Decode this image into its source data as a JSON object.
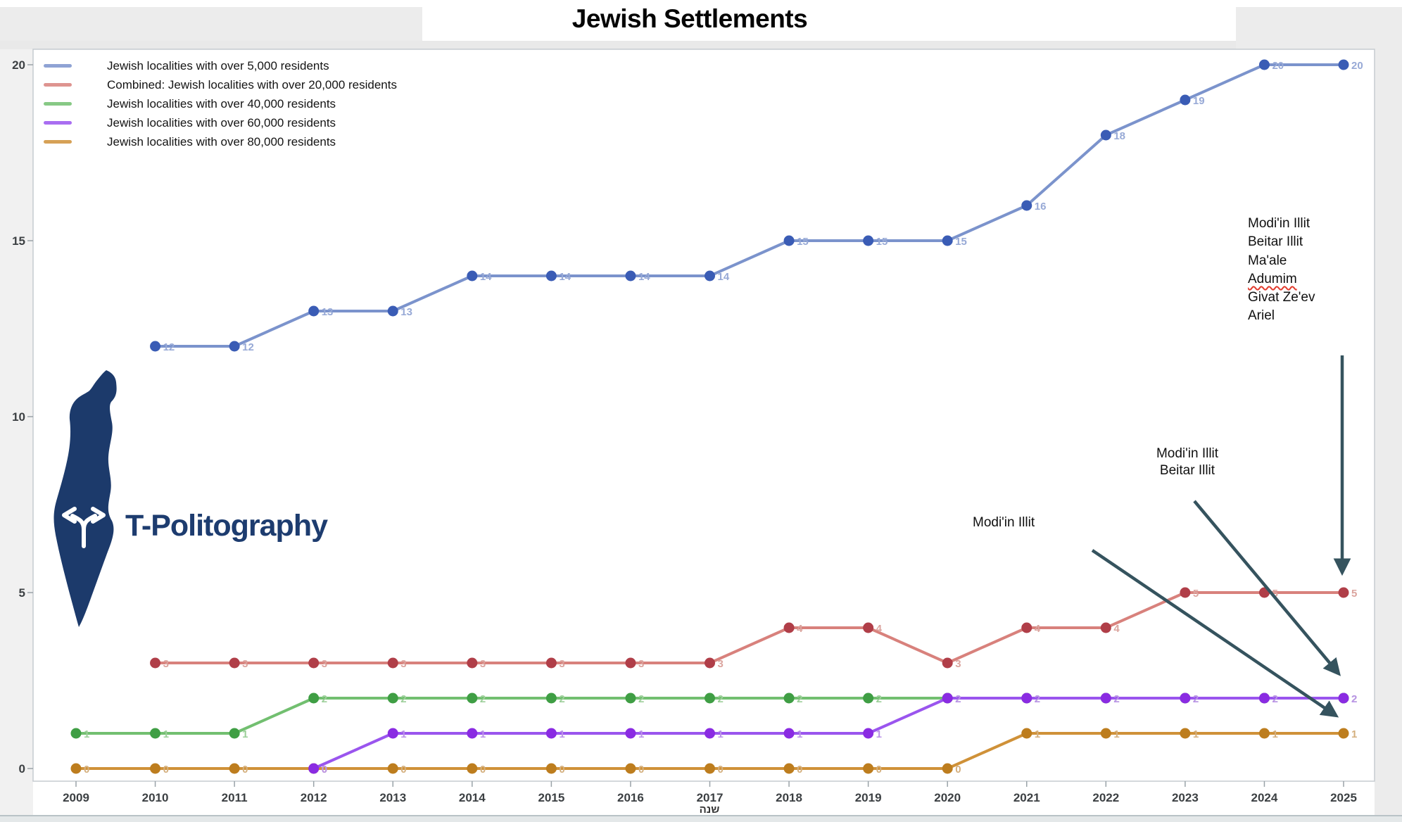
{
  "header": {
    "title": "Jewish Settlements"
  },
  "axes": {
    "x_label": "שנה"
  },
  "logo": {
    "text": "T-Politography",
    "color": "#1d3c6f"
  },
  "legend": {
    "items": [
      {
        "label": "Jewish localities with over 5,000 residents",
        "color": "#7b93cc"
      },
      {
        "label": "Combined: Jewish localities with over 20,000 residents",
        "color": "#d8817c"
      },
      {
        "label": "Jewish localities with over 40,000 residents",
        "color": "#72bf70"
      },
      {
        "label": "Jewish localities with over 60,000 residents",
        "color": "#9a55ee"
      },
      {
        "label": "Jewish localities with over 80,000 residents",
        "color": "#cf9138"
      }
    ]
  },
  "chart_data": {
    "type": "line",
    "title": "Jewish Settlements",
    "xlabel": "שנה",
    "ylabel": "",
    "ylim": [
      0,
      20
    ],
    "xlim": [
      2009,
      2025
    ],
    "grid": false,
    "legend_position": "top-left",
    "x_ticks": [
      "2009",
      "2010",
      "2011",
      "2012",
      "2013",
      "2014",
      "2015",
      "2016",
      "2017",
      "2018",
      "2019",
      "2020",
      "2021",
      "2022",
      "2023",
      "2024",
      "2025"
    ],
    "y_ticks": [
      0,
      5,
      10,
      15,
      20
    ],
    "series": [
      {
        "key": "over5000",
        "name": "Jewish localities with over 5,000 residents",
        "line_color": "#7b93cc",
        "point_color": "#3a5cb5",
        "label_color": "#97a9d6",
        "years": [
          2010,
          2011,
          2012,
          2013,
          2014,
          2015,
          2016,
          2017,
          2018,
          2019,
          2020,
          2021,
          2022,
          2023,
          2024,
          2025
        ],
        "values": [
          12,
          12,
          13,
          13,
          14,
          14,
          14,
          14,
          15,
          15,
          15,
          16,
          18,
          19,
          20,
          20
        ]
      },
      {
        "key": "over20000",
        "name": "Combined: Jewish localities with over 20,000 residents",
        "line_color": "#d8817c",
        "point_color": "#b03e48",
        "label_color": "#dba49e",
        "years": [
          2010,
          2011,
          2012,
          2013,
          2014,
          2015,
          2016,
          2017,
          2018,
          2019,
          2020,
          2021,
          2022,
          2023,
          2024,
          2025
        ],
        "values": [
          3,
          3,
          3,
          3,
          3,
          3,
          3,
          3,
          4,
          4,
          3,
          4,
          4,
          5,
          5,
          5
        ]
      },
      {
        "key": "over40000",
        "name": "Jewish localities with over 40,000 residents",
        "line_color": "#72bf70",
        "point_color": "#3f9e44",
        "label_color": "#9ccf99",
        "years": [
          2009,
          2010,
          2011,
          2012,
          2013,
          2014,
          2015,
          2016,
          2017,
          2018,
          2019,
          2020,
          2021,
          2022,
          2023,
          2024,
          2025
        ],
        "values": [
          1,
          1,
          1,
          2,
          2,
          2,
          2,
          2,
          2,
          2,
          2,
          2,
          2,
          2,
          2,
          2,
          2
        ]
      },
      {
        "key": "over60000",
        "name": "Jewish localities with over 60,000 residents",
        "line_color": "#9a55ee",
        "point_color": "#8a2be2",
        "label_color": "#bb93e8",
        "years": [
          2012,
          2013,
          2014,
          2015,
          2016,
          2017,
          2018,
          2019,
          2020,
          2021,
          2022,
          2023,
          2024,
          2025
        ],
        "values": [
          0,
          1,
          1,
          1,
          1,
          1,
          1,
          1,
          2,
          2,
          2,
          2,
          2,
          2
        ]
      },
      {
        "key": "over80000",
        "name": "Jewish localities with over 80,000 residents",
        "line_color": "#cf9138",
        "point_color": "#bd7d1e",
        "label_color": "#d4af7d",
        "years": [
          2009,
          2010,
          2011,
          2012,
          2013,
          2014,
          2015,
          2016,
          2017,
          2018,
          2019,
          2020,
          2021,
          2022,
          2023,
          2024,
          2025
        ],
        "values": [
          0,
          0,
          0,
          0,
          0,
          0,
          0,
          0,
          0,
          0,
          0,
          0,
          1,
          1,
          1,
          1,
          1
        ]
      }
    ]
  },
  "annotations": {
    "arrow_color": "#35535e",
    "settlement_list": {
      "lines": [
        "Modi'in Illit",
        "Beitar Illit",
        "Ma'ale",
        "Adumim",
        "Givat Ze'ev",
        "Ariel"
      ],
      "spellcheck_word": "Adumim"
    },
    "label_60k": {
      "lines": [
        "Modi'in Illit",
        "Beitar Illit"
      ]
    },
    "label_80k": {
      "lines": [
        "Modi'in Illit"
      ]
    }
  }
}
